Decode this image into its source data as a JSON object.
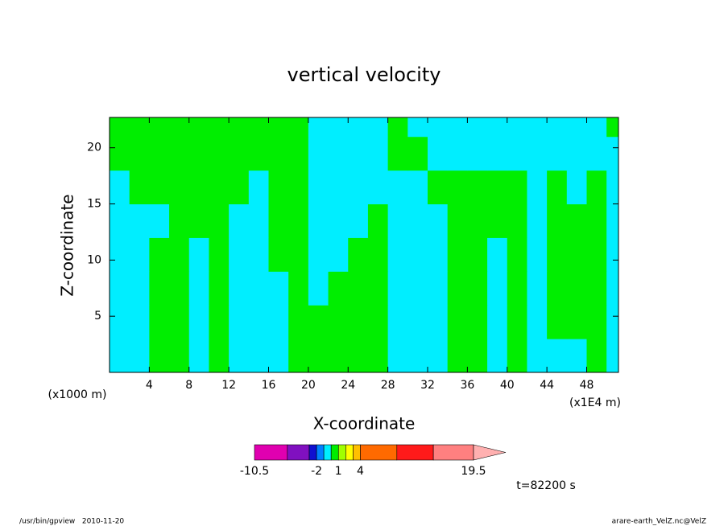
{
  "chart_data": {
    "type": "contour",
    "title": "vertical velocity",
    "xlabel": "X-coordinate",
    "ylabel": "Z-coordinate",
    "x_unit_left": "(x1000 m)",
    "x_unit_right": "(x1E4 m)",
    "time_label": "t=82200 s",
    "footer_left": "/usr/bin/gpview   2010-11-20",
    "footer_right": "arare-earth_VelZ.nc@VelZ",
    "xlim": [
      0,
      51.2
    ],
    "ylim": [
      0,
      22.7
    ],
    "xticks": [
      4,
      8,
      12,
      16,
      20,
      24,
      28,
      32,
      36,
      40,
      44,
      48
    ],
    "yticks": [
      5,
      10,
      15,
      20
    ],
    "field": {
      "x_edges": [
        0,
        2,
        4,
        6,
        8,
        10,
        12,
        14,
        16,
        18,
        20,
        22,
        24,
        26,
        28,
        30,
        32,
        34,
        36,
        38,
        40,
        42,
        44,
        46,
        48,
        50,
        51.2
      ],
      "z_edges": [
        0,
        3,
        6,
        9,
        12,
        15,
        18,
        21,
        22.7
      ],
      "values": [
        [
          -0.5,
          -0.5,
          0.5,
          0.5,
          -0.5,
          0.5,
          -0.5,
          -0.5,
          -0.5,
          0.5,
          0.5,
          0.5,
          0.5,
          0.5,
          -0.5,
          -0.5,
          -0.5,
          0.5,
          0.5,
          -0.5,
          0.5,
          -0.5,
          -0.5,
          -0.5,
          0.5,
          -0.5
        ],
        [
          -0.5,
          -0.5,
          0.5,
          0.5,
          -0.5,
          0.5,
          -0.5,
          -0.5,
          -0.5,
          0.5,
          0.5,
          0.5,
          0.5,
          0.5,
          -0.5,
          -0.5,
          -0.5,
          0.5,
          0.5,
          -0.5,
          0.5,
          -0.5,
          0.5,
          0.5,
          0.5,
          -0.5
        ],
        [
          -0.5,
          -0.5,
          0.5,
          0.5,
          -0.5,
          0.5,
          -0.5,
          -0.5,
          -0.5,
          0.5,
          -0.5,
          0.5,
          0.5,
          0.5,
          -0.5,
          -0.5,
          -0.5,
          0.5,
          0.5,
          -0.5,
          0.5,
          -0.5,
          0.5,
          0.5,
          0.5,
          -0.5
        ],
        [
          -0.5,
          -0.5,
          0.5,
          0.5,
          -0.5,
          0.5,
          -0.5,
          -0.5,
          0.5,
          0.5,
          -0.5,
          -0.5,
          0.5,
          0.5,
          -0.5,
          -0.5,
          -0.5,
          0.5,
          0.5,
          -0.5,
          0.5,
          -0.5,
          0.5,
          0.5,
          0.5,
          -0.5
        ],
        [
          -0.5,
          -0.5,
          -0.5,
          0.5,
          0.5,
          0.5,
          -0.5,
          -0.5,
          0.5,
          0.5,
          -0.5,
          -0.5,
          -0.5,
          0.5,
          -0.5,
          -0.5,
          -0.5,
          0.5,
          0.5,
          0.5,
          0.5,
          -0.5,
          0.5,
          0.5,
          0.5,
          -0.5
        ],
        [
          -0.5,
          0.5,
          0.5,
          0.5,
          0.5,
          0.5,
          0.5,
          -0.5,
          0.5,
          0.5,
          -0.5,
          -0.5,
          -0.5,
          -0.5,
          -0.5,
          -0.5,
          0.5,
          0.5,
          0.5,
          0.5,
          0.5,
          -0.5,
          0.5,
          -0.5,
          0.5,
          -0.5
        ],
        [
          0.5,
          0.5,
          0.5,
          0.5,
          0.5,
          0.5,
          0.5,
          0.5,
          0.5,
          0.5,
          -0.5,
          -0.5,
          -0.5,
          -0.5,
          0.5,
          0.5,
          -0.5,
          -0.5,
          -0.5,
          -0.5,
          -0.5,
          -0.5,
          -0.5,
          -0.5,
          -0.5,
          -0.5
        ],
        [
          0.5,
          0.5,
          0.5,
          0.5,
          0.5,
          0.5,
          0.5,
          0.5,
          0.5,
          0.5,
          -0.5,
          -0.5,
          -0.5,
          -0.5,
          0.5,
          -0.5,
          -0.5,
          -0.5,
          -0.5,
          -0.5,
          -0.5,
          -0.5,
          -0.5,
          -0.5,
          -0.5,
          0.5
        ]
      ]
    },
    "levels": [
      -10.5,
      -6,
      -3,
      -2,
      -1,
      0,
      1,
      2,
      3,
      4,
      9,
      14,
      19.5
    ],
    "level_colors": [
      "#e000b0",
      "#8010c0",
      "#1010d0",
      "#0080ff",
      "#00eeff",
      "#00ee00",
      "#a0ff00",
      "#ffff00",
      "#ffc000",
      "#ff6a00",
      "#ff1a1a",
      "#ff8080"
    ],
    "over_color": "#ffb0b0",
    "colorbar_ticks": [
      -10.5,
      -2,
      1,
      4,
      19.5
    ]
  }
}
